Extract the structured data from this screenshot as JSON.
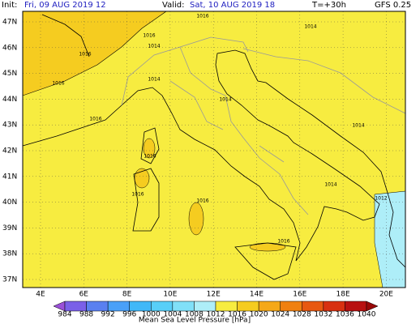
{
  "header": {
    "init_label": "Init:",
    "init_value": "Fri, 09 AUG 2019  12",
    "valid_label": "Valid:",
    "valid_value": "Sat, 10 AUG 2019  18",
    "lead": "T=+30h",
    "model": "GFS 0.25"
  },
  "map": {
    "lat_labels": [
      "47N",
      "46N",
      "45N",
      "44N",
      "43N",
      "42N",
      "41N",
      "40N",
      "39N",
      "38N",
      "37N"
    ],
    "lon_labels": [
      "4E",
      "6E",
      "8E",
      "10E",
      "12E",
      "14E",
      "16E",
      "18E",
      "20E"
    ],
    "isobar_labels": [
      "1016",
      "1014",
      "1016",
      "1014",
      "1016",
      "1016",
      "1014",
      "1014",
      "1016",
      "1014",
      "1016",
      "1016",
      "1016",
      "1014",
      "1012",
      "1016"
    ]
  },
  "colorbar": {
    "labels": [
      "984",
      "988",
      "992",
      "996",
      "1000",
      "1004",
      "1008",
      "1012",
      "1016",
      "1020",
      "1024",
      "1028",
      "1032",
      "1036",
      "1040"
    ],
    "colors": [
      "#9a50d8",
      "#7a60e8",
      "#5a80f0",
      "#4aa0f8",
      "#40b8f8",
      "#58cff8",
      "#80e0f8",
      "#aeeef8",
      "#f7ec40",
      "#f5cc20",
      "#f5a818",
      "#f08010",
      "#e85810",
      "#d83010",
      "#b81010",
      "#980808"
    ],
    "title": "Mean Sea Level Pressure [hPa]"
  }
}
